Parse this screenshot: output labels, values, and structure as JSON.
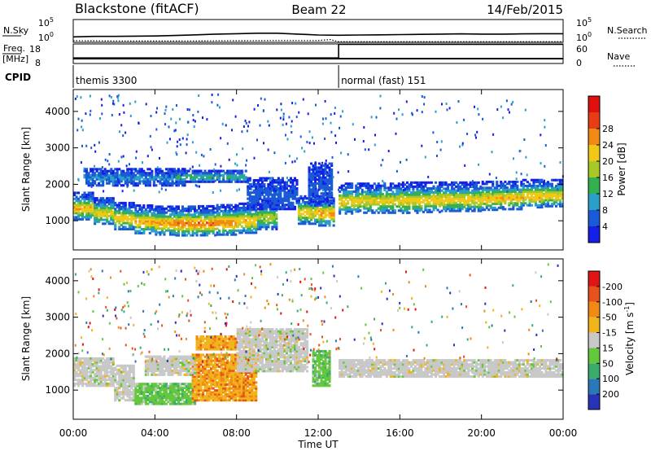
{
  "header": {
    "station": "Blackstone (fitACF)",
    "beam": "Beam 22",
    "date": "14/Feb/2015"
  },
  "chart_data": [
    {
      "type": "line",
      "panel": "noise",
      "left_label": "N.Sky",
      "right_label": "N.Search",
      "left_ticks": [
        "10^5",
        "10^0"
      ],
      "right_ticks": [
        "10^5",
        "10^0"
      ],
      "x_range": [
        0,
        24
      ],
      "series_note": "solid line = N.Sky, dotted line = N.Search",
      "sky_log10": {
        "x": [
          0,
          1,
          2,
          3,
          4,
          5,
          6,
          7,
          8,
          9,
          10,
          11,
          12,
          13,
          14,
          15,
          16,
          17,
          18,
          19,
          20,
          21,
          22,
          23,
          24
        ],
        "y": [
          1.2,
          1.3,
          1.3,
          1.35,
          1.4,
          1.5,
          1.65,
          1.8,
          1.9,
          2.0,
          2.0,
          1.8,
          1.6,
          1.55,
          1.6,
          1.65,
          1.7,
          1.75,
          1.8,
          1.85,
          1.8,
          1.8,
          1.85,
          1.9,
          1.9
        ]
      },
      "search_log10": {
        "x": [
          0,
          2,
          4,
          6,
          8,
          10,
          12,
          12.6,
          13,
          16,
          20,
          24
        ],
        "y": [
          0.35,
          0.3,
          0.28,
          0.3,
          0.35,
          0.4,
          0.4,
          0.6,
          0.15,
          0.15,
          0.15,
          0.15
        ]
      }
    },
    {
      "type": "line",
      "panel": "frequency",
      "left_label": "Freq.",
      "left_unit": "[MHz]",
      "left_ticks": [
        "18",
        "8"
      ],
      "left_range": [
        8,
        18
      ],
      "right_label": "Nave",
      "right_ticks": [
        "60",
        "0"
      ],
      "right_range": [
        0,
        60
      ],
      "freq": {
        "x": [
          0,
          24
        ],
        "y": [
          10.5,
          10.5
        ]
      },
      "nave": {
        "x": [
          0,
          13,
          13,
          24
        ],
        "y": [
          17,
          17,
          59,
          59
        ]
      }
    },
    {
      "type": "table",
      "panel": "cpid",
      "label": "CPID",
      "segments": [
        {
          "start": 0,
          "end": 13,
          "name": "themis 3300"
        },
        {
          "start": 13,
          "end": 24,
          "name": "normal (fast) 151"
        }
      ]
    },
    {
      "type": "heatmap",
      "panel": "power",
      "ylabel": "Slant Range [km]",
      "y_ticks": [
        1000,
        2000,
        3000,
        4000
      ],
      "ylim": [
        200,
        4600
      ],
      "x_range": [
        0,
        24
      ],
      "colorbar": {
        "label": "Power [dB]",
        "ticks": [
          "4",
          "8",
          "12",
          "16",
          "20",
          "24",
          "28"
        ],
        "colors": [
          "#1420e6",
          "#1a5ad6",
          "#2aa0c8",
          "#34b050",
          "#a8c828",
          "#f0c818",
          "#f08a14",
          "#e83c14",
          "#e01010"
        ]
      },
      "bands": [
        {
          "t0": 0.0,
          "t1": 1.0,
          "r0": 1020,
          "r1": 1800,
          "peak_dB": 23
        },
        {
          "t0": 1.0,
          "t1": 2.0,
          "r0": 900,
          "r1": 1650,
          "peak_dB": 21
        },
        {
          "t0": 2.0,
          "t1": 3.0,
          "r0": 750,
          "r1": 1520,
          "peak_dB": 22
        },
        {
          "t0": 3.0,
          "t1": 4.0,
          "r0": 640,
          "r1": 1450,
          "peak_dB": 24
        },
        {
          "t0": 4.0,
          "t1": 5.0,
          "r0": 600,
          "r1": 1420,
          "peak_dB": 25
        },
        {
          "t0": 5.0,
          "t1": 6.0,
          "r0": 580,
          "r1": 1420,
          "peak_dB": 27
        },
        {
          "t0": 6.0,
          "t1": 7.0,
          "r0": 580,
          "r1": 1430,
          "peak_dB": 27
        },
        {
          "t0": 7.0,
          "t1": 8.0,
          "r0": 600,
          "r1": 1460,
          "peak_dB": 26
        },
        {
          "t0": 8.0,
          "t1": 9.0,
          "r0": 650,
          "r1": 1500,
          "peak_dB": 23
        },
        {
          "t0": 9.0,
          "t1": 10.0,
          "r0": 750,
          "r1": 1600,
          "peak_dB": 18
        },
        {
          "t0": 11.0,
          "t1": 12.0,
          "r0": 900,
          "r1": 1700,
          "peak_dB": 22
        },
        {
          "t0": 12.0,
          "t1": 12.8,
          "r0": 850,
          "r1": 1700,
          "peak_dB": 25
        },
        {
          "t0": 13.0,
          "t1": 14.0,
          "r0": 1180,
          "r1": 2050,
          "peak_dB": 22
        },
        {
          "t0": 14.0,
          "t1": 15.0,
          "r0": 1200,
          "r1": 2050,
          "peak_dB": 21
        },
        {
          "t0": 15.0,
          "t1": 16.0,
          "r0": 1200,
          "r1": 2050,
          "peak_dB": 21
        },
        {
          "t0": 16.0,
          "t1": 17.0,
          "r0": 1200,
          "r1": 2080,
          "peak_dB": 22
        },
        {
          "t0": 17.0,
          "t1": 18.0,
          "r0": 1220,
          "r1": 2080,
          "peak_dB": 22
        },
        {
          "t0": 18.0,
          "t1": 19.0,
          "r0": 1250,
          "r1": 2080,
          "peak_dB": 22
        },
        {
          "t0": 19.0,
          "t1": 20.0,
          "r0": 1250,
          "r1": 2080,
          "peak_dB": 22
        },
        {
          "t0": 20.0,
          "t1": 21.0,
          "r0": 1280,
          "r1": 2100,
          "peak_dB": 23
        },
        {
          "t0": 21.0,
          "t1": 22.0,
          "r0": 1300,
          "r1": 2100,
          "peak_dB": 23
        },
        {
          "t0": 22.0,
          "t1": 23.0,
          "r0": 1350,
          "r1": 2150,
          "peak_dB": 23
        },
        {
          "t0": 23.0,
          "t1": 24.0,
          "r0": 1380,
          "r1": 2150,
          "peak_dB": 22
        },
        {
          "t0": 0.5,
          "t1": 5.5,
          "r0": 1950,
          "r1": 2450,
          "peak_dB": 9
        },
        {
          "t0": 5.0,
          "t1": 8.5,
          "r0": 2050,
          "r1": 2400,
          "peak_dB": 13
        },
        {
          "t0": 8.5,
          "t1": 11.0,
          "r0": 1300,
          "r1": 2200,
          "peak_dB": 6
        },
        {
          "t0": 11.5,
          "t1": 12.7,
          "r0": 1400,
          "r1": 2600,
          "peak_dB": 6
        }
      ]
    },
    {
      "type": "heatmap",
      "panel": "velocity",
      "ylabel": "Slant Range [km]",
      "y_ticks": [
        1000,
        2000,
        3000,
        4000
      ],
      "ylim": [
        200,
        4600
      ],
      "x_range": [
        0,
        24
      ],
      "colorbar": {
        "label": "Velocity [m s^-1]",
        "ticks": [
          "200",
          "100",
          "50",
          "15",
          "-15",
          "-50",
          "-100",
          "-200"
        ],
        "colors": [
          "#2834b8",
          "#2a78b8",
          "#3cac6c",
          "#64c83c",
          "#c8c8c8",
          "#f0b41c",
          "#f08a14",
          "#e8501c",
          "#e01414"
        ]
      },
      "bands": [
        {
          "t0": 0.0,
          "t1": 2.0,
          "r0": 1100,
          "r1": 1900,
          "class": "gray"
        },
        {
          "t0": 2.0,
          "t1": 3.0,
          "r0": 700,
          "r1": 1700,
          "class": "gray"
        },
        {
          "t0": 3.0,
          "t1": 6.0,
          "r0": 600,
          "r1": 1200,
          "class": "green"
        },
        {
          "t0": 5.8,
          "t1": 9.0,
          "r0": 700,
          "r1": 2000,
          "class": "orange"
        },
        {
          "t0": 3.5,
          "t1": 6.0,
          "r0": 1400,
          "r1": 1950,
          "class": "gray"
        },
        {
          "t0": 6.0,
          "t1": 8.0,
          "r0": 2100,
          "r1": 2500,
          "class": "orange"
        },
        {
          "t0": 8.0,
          "t1": 11.5,
          "r0": 1500,
          "r1": 2700,
          "class": "gray"
        },
        {
          "t0": 11.7,
          "t1": 12.6,
          "r0": 1100,
          "r1": 2100,
          "class": "green"
        },
        {
          "t0": 13.0,
          "t1": 24.0,
          "r0": 1350,
          "r1": 1850,
          "class": "gray"
        }
      ]
    }
  ],
  "x_axis": {
    "ticks": [
      "00:00",
      "04:00",
      "08:00",
      "12:00",
      "16:00",
      "20:00",
      "00:00"
    ],
    "label": "Time UT"
  }
}
